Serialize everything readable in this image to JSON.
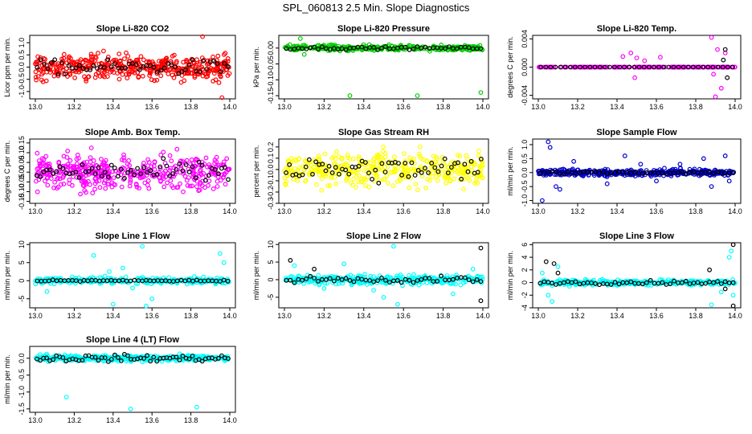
{
  "page_title": "SPL_060813  2.5 Min. Slope Diagnostics",
  "colors": {
    "red": "#ff0000",
    "green": "#00cc00",
    "magenta": "#ff00ff",
    "yellow": "#ffff00",
    "blue": "#0000cc",
    "cyan": "#00ffff",
    "black": "#000000"
  },
  "chart_data": [
    {
      "type": "scatter",
      "title": "Slope Li-820 CO2",
      "ylabel": "Licor ppm per min.",
      "xlim": [
        13.0,
        14.0
      ],
      "ylim": [
        -1.3,
        1.3
      ],
      "xticks": [
        "13.0",
        "13.2",
        "13.4",
        "13.6",
        "13.8",
        "14.0"
      ],
      "yticks": [
        {
          "v": -1.0,
          "label": "-1.0"
        },
        {
          "v": -0.5,
          "label": "-0.5"
        },
        {
          "v": 0.0,
          "label": "0.0"
        },
        {
          "v": 0.5,
          "label": "0.5"
        },
        {
          "v": 1.0,
          "label": "1.0"
        }
      ],
      "color": "red",
      "spread": 0.35,
      "n_colored": 420,
      "outliers": [
        [
          13.86,
          1.25
        ],
        [
          13.96,
          -1.25
        ],
        [
          13.04,
          -0.6
        ]
      ],
      "n_black": 55,
      "black_spread": 0.2
    },
    {
      "type": "scatter",
      "title": "Slope Li-820 Pressure",
      "ylabel": "kPa per min.",
      "xlim": [
        13.0,
        14.0
      ],
      "ylim": [
        -0.16,
        0.04
      ],
      "xticks": [
        "13.0",
        "13.2",
        "13.4",
        "13.6",
        "13.8",
        "14.0"
      ],
      "yticks": [
        {
          "v": -0.15,
          "label": "-0.15"
        },
        {
          "v": -0.1,
          "label": "-0.10"
        },
        {
          "v": -0.05,
          "label": "-0.05"
        },
        {
          "v": 0.0,
          "label": "0.00"
        }
      ],
      "color": "green",
      "spread": 0.006,
      "n_colored": 300,
      "outliers": [
        [
          13.08,
          0.03
        ],
        [
          13.33,
          -0.15
        ],
        [
          13.67,
          -0.15
        ],
        [
          13.99,
          -0.14
        ],
        [
          13.1,
          -0.02
        ]
      ],
      "n_black": 50,
      "black_spread": 0.003
    },
    {
      "type": "scatter",
      "title": "Slope Li-820 Temp.",
      "ylabel": "degrees C per min.",
      "xlim": [
        13.0,
        14.0
      ],
      "ylim": [
        -0.0045,
        0.0045
      ],
      "xticks": [
        "13.0",
        "13.2",
        "13.4",
        "13.6",
        "13.8",
        "14.0"
      ],
      "yticks": [
        {
          "v": -0.004,
          "label": "-0.004"
        },
        {
          "v": 0.0,
          "label": "0.000"
        },
        {
          "v": 0.004,
          "label": "0.004"
        }
      ],
      "color": "magenta",
      "spread": 0.0,
      "n_colored": 200,
      "outliers": [
        [
          13.43,
          0.0015
        ],
        [
          13.47,
          0.002
        ],
        [
          13.49,
          -0.0015
        ],
        [
          13.5,
          0.0013
        ],
        [
          13.54,
          0.0009
        ],
        [
          13.62,
          0.0014
        ],
        [
          13.88,
          0.0042
        ],
        [
          13.9,
          -0.0042
        ],
        [
          13.91,
          0.0025
        ],
        [
          13.93,
          -0.003
        ],
        [
          13.95,
          0.002
        ],
        [
          13.89,
          -0.001
        ]
      ],
      "n_black": 40,
      "black_spread": 0.0,
      "black_extra": [
        [
          13.95,
          0.0025
        ],
        [
          13.96,
          -0.0015
        ],
        [
          13.94,
          0.001
        ]
      ]
    },
    {
      "type": "scatter",
      "title": "Slope Amb. Box Temp.",
      "ylabel": "degrees C per min.",
      "xlim": [
        13.0,
        14.0
      ],
      "ylim": [
        -0.16,
        0.17
      ],
      "xticks": [
        "13.0",
        "13.2",
        "13.4",
        "13.6",
        "13.8",
        "14.0"
      ],
      "yticks": [
        {
          "v": -0.15,
          "label": "-0.15"
        },
        {
          "v": -0.1,
          "label": "-0.10"
        },
        {
          "v": -0.05,
          "label": "-0.05"
        },
        {
          "v": 0.0,
          "label": "0.00"
        },
        {
          "v": 0.05,
          "label": "0.05"
        },
        {
          "v": 0.1,
          "label": "0.10"
        },
        {
          "v": 0.15,
          "label": "0.15"
        }
      ],
      "color": "magenta",
      "spread": 0.06,
      "n_colored": 420,
      "outliers": [],
      "n_black": 60,
      "black_spread": 0.04
    },
    {
      "type": "scatter",
      "title": "Slope Gas Stream RH",
      "ylabel": "percent per min.",
      "xlim": [
        13.0,
        14.0
      ],
      "ylim": [
        -0.3,
        0.27
      ],
      "xticks": [
        "13.0",
        "13.2",
        "13.4",
        "13.6",
        "13.8",
        "14.0"
      ],
      "yticks": [
        {
          "v": -0.3,
          "label": "-0.3"
        },
        {
          "v": -0.2,
          "label": "-0.2"
        },
        {
          "v": -0.1,
          "label": "-0.1"
        },
        {
          "v": 0.0,
          "label": "0.0"
        },
        {
          "v": 0.1,
          "label": "0.1"
        },
        {
          "v": 0.2,
          "label": "0.2"
        }
      ],
      "color": "yellow",
      "spread": 0.1,
      "n_colored": 420,
      "outliers": [],
      "n_black": 60,
      "black_spread": 0.08
    },
    {
      "type": "scatter",
      "title": "Slope Sample Flow",
      "ylabel": "ml/min per min.",
      "xlim": [
        13.0,
        14.0
      ],
      "ylim": [
        -1.1,
        1.2
      ],
      "xticks": [
        "13.0",
        "13.2",
        "13.4",
        "13.6",
        "13.8",
        "14.0"
      ],
      "yticks": [
        {
          "v": -1.0,
          "label": "-1.0"
        },
        {
          "v": -0.5,
          "label": "-0.5"
        },
        {
          "v": 0.0,
          "label": "0.0"
        },
        {
          "v": 0.5,
          "label": "0.5"
        },
        {
          "v": 1.0,
          "label": "1.0"
        }
      ],
      "color": "blue",
      "spread": 0.08,
      "n_colored": 380,
      "outliers": [
        [
          13.05,
          1.1
        ],
        [
          13.06,
          0.9
        ],
        [
          13.02,
          -1.0
        ],
        [
          13.09,
          -0.5
        ],
        [
          13.11,
          -0.6
        ],
        [
          13.18,
          0.4
        ],
        [
          13.35,
          -0.4
        ],
        [
          13.44,
          0.6
        ],
        [
          13.52,
          0.3
        ],
        [
          13.6,
          -0.3
        ],
        [
          13.72,
          0.3
        ],
        [
          13.84,
          0.5
        ],
        [
          13.88,
          -0.5
        ],
        [
          13.95,
          0.6
        ],
        [
          13.97,
          -0.3
        ]
      ],
      "n_black": 50,
      "black_spread": 0.03
    },
    {
      "type": "scatter",
      "title": "Slope Line 1 Flow",
      "ylabel": "ml/min per min.",
      "xlim": [
        13.0,
        14.0
      ],
      "ylim": [
        -7.5,
        10.5
      ],
      "xticks": [
        "13.0",
        "13.2",
        "13.4",
        "13.6",
        "13.8",
        "14.0"
      ],
      "yticks": [
        {
          "v": -5,
          "label": "-5"
        },
        {
          "v": 0,
          "label": "0"
        },
        {
          "v": 5,
          "label": "5"
        },
        {
          "v": 10,
          "label": "10"
        }
      ],
      "color": "cyan",
      "spread": 0.6,
      "n_colored": 300,
      "outliers": [
        [
          13.3,
          7.0
        ],
        [
          13.4,
          -6.5
        ],
        [
          13.55,
          9.5
        ],
        [
          13.57,
          -7.0
        ],
        [
          13.6,
          -5.0
        ],
        [
          13.45,
          3.5
        ],
        [
          13.5,
          -2.0
        ],
        [
          13.95,
          7.5
        ],
        [
          13.97,
          5.0
        ],
        [
          13.06,
          -3.0
        ],
        [
          13.38,
          2.5
        ]
      ],
      "n_black": 50,
      "black_spread": 0.15
    },
    {
      "type": "scatter",
      "title": "Slope Line 2 Flow",
      "ylabel": "ml/min per min.",
      "xlim": [
        13.0,
        14.0
      ],
      "ylim": [
        -8.0,
        10.5
      ],
      "xticks": [
        "13.0",
        "13.2",
        "13.4",
        "13.6",
        "13.8",
        "14.0"
      ],
      "yticks": [
        {
          "v": -5,
          "label": "-5"
        },
        {
          "v": 0,
          "label": "0"
        },
        {
          "v": 5,
          "label": "5"
        },
        {
          "v": 10,
          "label": "10"
        }
      ],
      "color": "cyan",
      "spread": 0.9,
      "n_colored": 320,
      "outliers": [
        [
          13.05,
          4.0
        ],
        [
          13.3,
          4.5
        ],
        [
          13.55,
          9.5
        ],
        [
          13.5,
          -5.0
        ],
        [
          13.57,
          -7.0
        ],
        [
          13.45,
          -3.0
        ],
        [
          13.85,
          -4.0
        ],
        [
          13.95,
          3.0
        ],
        [
          13.2,
          -2.5
        ]
      ],
      "n_black": 50,
      "black_spread": 0.6,
      "black_extra": [
        [
          13.03,
          5.5
        ],
        [
          13.99,
          9.0
        ],
        [
          13.99,
          -6.0
        ],
        [
          13.15,
          3.0
        ]
      ]
    },
    {
      "type": "scatter",
      "title": "Slope Line 3 Flow",
      "ylabel": "ml/min per min.",
      "xlim": [
        13.0,
        14.0
      ],
      "ylim": [
        -4.0,
        6.3
      ],
      "xticks": [
        "13.0",
        "13.2",
        "13.4",
        "13.6",
        "13.8",
        "14.0"
      ],
      "yticks": [
        {
          "v": -4,
          "label": "-4"
        },
        {
          "v": -2,
          "label": "-2"
        },
        {
          "v": 0,
          "label": "0"
        },
        {
          "v": 2,
          "label": "2"
        },
        {
          "v": 4,
          "label": "4"
        },
        {
          "v": 6,
          "label": "6"
        }
      ],
      "color": "cyan",
      "spread": 0.3,
      "n_colored": 300,
      "outliers": [
        [
          13.05,
          -2.0
        ],
        [
          13.07,
          -3.0
        ],
        [
          13.1,
          2.5
        ],
        [
          13.88,
          -3.5
        ],
        [
          13.98,
          5.0
        ],
        [
          13.97,
          4.0
        ],
        [
          13.99,
          -2.0
        ],
        [
          13.93,
          -1.5
        ],
        [
          13.02,
          1.5
        ]
      ],
      "n_black": 50,
      "black_spread": 0.2,
      "black_extra": [
        [
          13.04,
          3.3
        ],
        [
          13.08,
          3.0
        ],
        [
          13.1,
          1.5
        ],
        [
          13.87,
          2.0
        ],
        [
          13.99,
          6.0
        ],
        [
          13.99,
          -3.7
        ],
        [
          13.95,
          -1.0
        ]
      ]
    },
    {
      "type": "scatter",
      "title": "Slope Line 4 (LT) Flow",
      "ylabel": "ml/min per min.",
      "xlim": [
        13.0,
        14.0
      ],
      "ylim": [
        -1.6,
        0.35
      ],
      "xticks": [
        "13.0",
        "13.2",
        "13.4",
        "13.6",
        "13.8",
        "14.0"
      ],
      "yticks": [
        {
          "v": -1.5,
          "label": "-1.5"
        },
        {
          "v": -1.0,
          "label": "-1.0"
        },
        {
          "v": -0.5,
          "label": "-0.5"
        },
        {
          "v": 0.0,
          "label": "0.0"
        }
      ],
      "color": "cyan",
      "spread": 0.06,
      "n_colored": 360,
      "outliers": [
        [
          13.16,
          -1.15
        ],
        [
          13.49,
          -1.5
        ],
        [
          13.83,
          -1.45
        ]
      ],
      "n_black": 60,
      "black_spread": 0.07
    }
  ]
}
